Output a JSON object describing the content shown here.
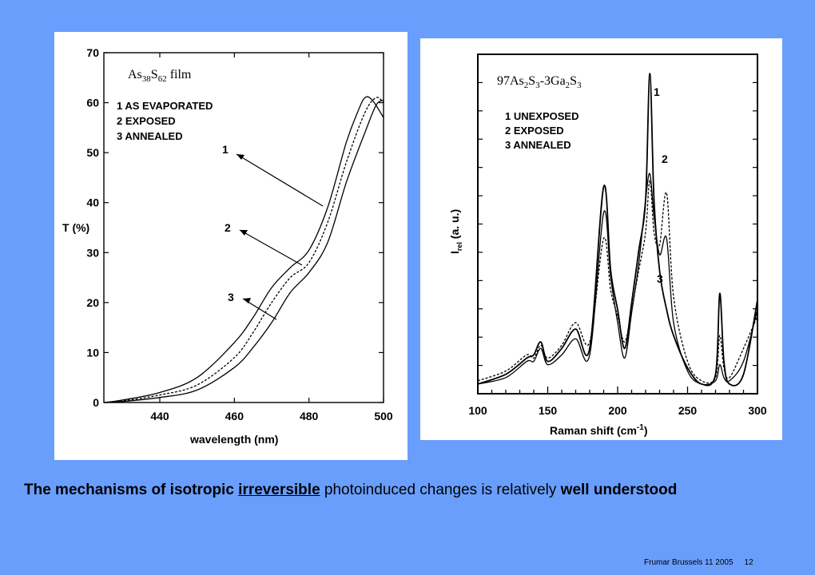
{
  "colors": {
    "background": "#6a9efd",
    "panel": "#ffffff",
    "ink": "#000000"
  },
  "caption": {
    "part1": "The mechanisms of isotropic ",
    "part2": "irreversible",
    "part3": " photoinduced changes is relatively ",
    "part4": "well understood"
  },
  "footer": {
    "author_event": "Frumar Brussels 11 2005",
    "page_number": "12"
  },
  "chart_data": [
    {
      "type": "line",
      "title_main": "As",
      "title_sub1": "38",
      "title_mid": "S",
      "title_sub2": "62",
      "title_tail": " film",
      "xlabel": "wavelength (nm)",
      "ylabel": "T (%)",
      "xlim": [
        425,
        500
      ],
      "ylim": [
        0,
        70
      ],
      "xticks": [
        440,
        460,
        480,
        500
      ],
      "yticks": [
        0,
        10,
        20,
        30,
        40,
        50,
        60,
        70
      ],
      "legend": [
        "1 AS EVAPORATED",
        "2 EXPOSED",
        "3 ANNEALED"
      ],
      "annotations": [
        "1",
        "2",
        "3"
      ],
      "series": [
        {
          "name": "1 AS EVAPORATED",
          "style": "solid",
          "x": [
            425,
            430,
            440,
            450,
            460,
            465,
            470,
            475,
            480,
            485,
            490,
            493,
            495,
            497,
            500
          ],
          "y": [
            0,
            0.5,
            2,
            5,
            12,
            17,
            23,
            27,
            30.5,
            39,
            52,
            58,
            61,
            60.5,
            57
          ]
        },
        {
          "name": "2 EXPOSED",
          "style": "dashed",
          "x": [
            425,
            430,
            440,
            450,
            460,
            465,
            470,
            475,
            480,
            485,
            490,
            495,
            498,
            500
          ],
          "y": [
            0,
            0.3,
            1.5,
            3.5,
            9,
            14,
            20,
            25,
            28,
            36,
            48,
            58,
            61,
            60
          ]
        },
        {
          "name": "3 ANNEALED",
          "style": "solid",
          "x": [
            425,
            430,
            440,
            450,
            460,
            465,
            470,
            475,
            480,
            485,
            490,
            495,
            498,
            500
          ],
          "y": [
            0,
            0.2,
            1,
            2.5,
            7,
            11,
            16,
            22,
            26,
            32,
            44,
            54,
            59.5,
            60.5
          ]
        }
      ]
    },
    {
      "type": "line",
      "title_p1": "97As",
      "title_s1": "2",
      "title_p2": "S",
      "title_s2": "3",
      "title_p3": "-3Ga",
      "title_s3": "2",
      "title_p4": "S",
      "title_s4": "3",
      "xlabel": "Raman shift (cm",
      "xlabel_sup": "-1",
      "xlabel_tail": ")",
      "ylabel": "I",
      "ylabel_sub": "rel",
      "ylabel_tail": " (a. u.)",
      "xlim": [
        100,
        300
      ],
      "ylim": [
        0,
        100
      ],
      "xticks": [
        100,
        150,
        200,
        250,
        300
      ],
      "legend": [
        "1 UNEXPOSED",
        "2 EXPOSED",
        "3 ANNEALED"
      ],
      "annotations": [
        "1",
        "2",
        "3"
      ],
      "series": [
        {
          "name": "1 UNEXPOSED",
          "style": "solid",
          "x": [
            100,
            120,
            135,
            140,
            145,
            150,
            160,
            170,
            180,
            190,
            195,
            200,
            205,
            210,
            215,
            220,
            223,
            226,
            230,
            235,
            240,
            250,
            260,
            270,
            273,
            276,
            280,
            290,
            300
          ],
          "y": [
            3,
            6,
            11,
            12,
            16,
            10,
            14,
            20,
            14,
            64,
            38,
            26,
            14,
            28,
            44,
            60,
            99,
            60,
            38,
            26,
            18,
            8,
            3,
            6,
            31,
            10,
            3,
            6,
            29
          ]
        },
        {
          "name": "2 EXPOSED",
          "style": "dashed",
          "x": [
            100,
            120,
            135,
            140,
            145,
            150,
            160,
            170,
            180,
            190,
            195,
            200,
            205,
            210,
            215,
            220,
            223,
            226,
            230,
            235,
            240,
            250,
            260,
            270,
            273,
            276,
            280,
            290,
            300
          ],
          "y": [
            4,
            7,
            12,
            11,
            15,
            11,
            15,
            22,
            16,
            48,
            32,
            24,
            16,
            26,
            38,
            50,
            66,
            50,
            46,
            62,
            30,
            10,
            4,
            5,
            18,
            8,
            5,
            14,
            24
          ]
        },
        {
          "name": "3 ANNEALED",
          "style": "solid",
          "x": [
            100,
            120,
            135,
            140,
            145,
            150,
            160,
            170,
            180,
            190,
            195,
            200,
            205,
            210,
            215,
            220,
            223,
            226,
            230,
            235,
            240,
            250,
            260,
            270,
            273,
            276,
            280,
            290,
            300
          ],
          "y": [
            3,
            5,
            10,
            10,
            14,
            9,
            12,
            17,
            12,
            56,
            36,
            22,
            11,
            25,
            40,
            60,
            68,
            55,
            43,
            48,
            22,
            7,
            3,
            4,
            9,
            5,
            4,
            10,
            26
          ]
        }
      ]
    }
  ]
}
